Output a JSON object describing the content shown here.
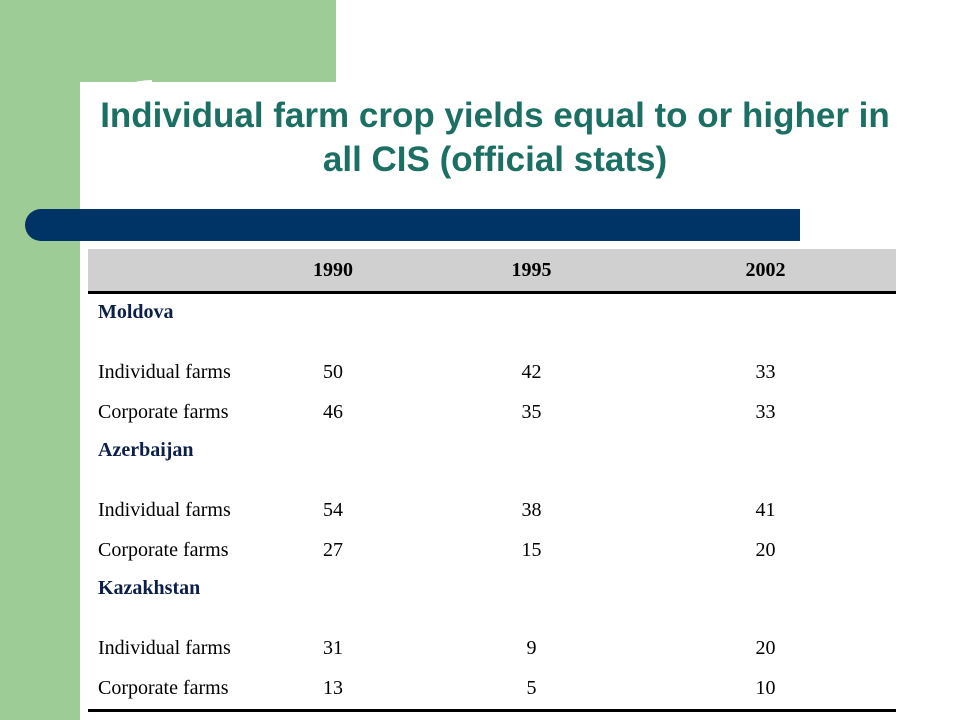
{
  "title": "Individual farm crop yields equal to or higher in all CIS (official stats)",
  "table": {
    "columns": [
      "",
      "1990",
      "1995",
      "2002"
    ],
    "groups": [
      {
        "name": "Moldova",
        "rows": [
          {
            "label": "Individual farms",
            "values": [
              "50",
              "42",
              "33"
            ]
          },
          {
            "label": "Corporate farms",
            "values": [
              "46",
              "35",
              "33"
            ]
          }
        ]
      },
      {
        "name": "Azerbaijan",
        "rows": [
          {
            "label": "Individual farms",
            "values": [
              "54",
              "38",
              "41"
            ]
          },
          {
            "label": "Corporate farms",
            "values": [
              "27",
              "15",
              "20"
            ]
          }
        ]
      },
      {
        "name": "Kazakhstan",
        "rows": [
          {
            "label": "Individual farms",
            "values": [
              "31",
              "9",
              "20"
            ]
          },
          {
            "label": "Corporate farms",
            "values": [
              "13",
              "5",
              "10"
            ]
          }
        ]
      }
    ]
  },
  "colors": {
    "accent_green": "#9dcc96",
    "title_teal": "#1c6f63",
    "bar_navy": "#003366",
    "header_gray": "#d0d0d0"
  }
}
